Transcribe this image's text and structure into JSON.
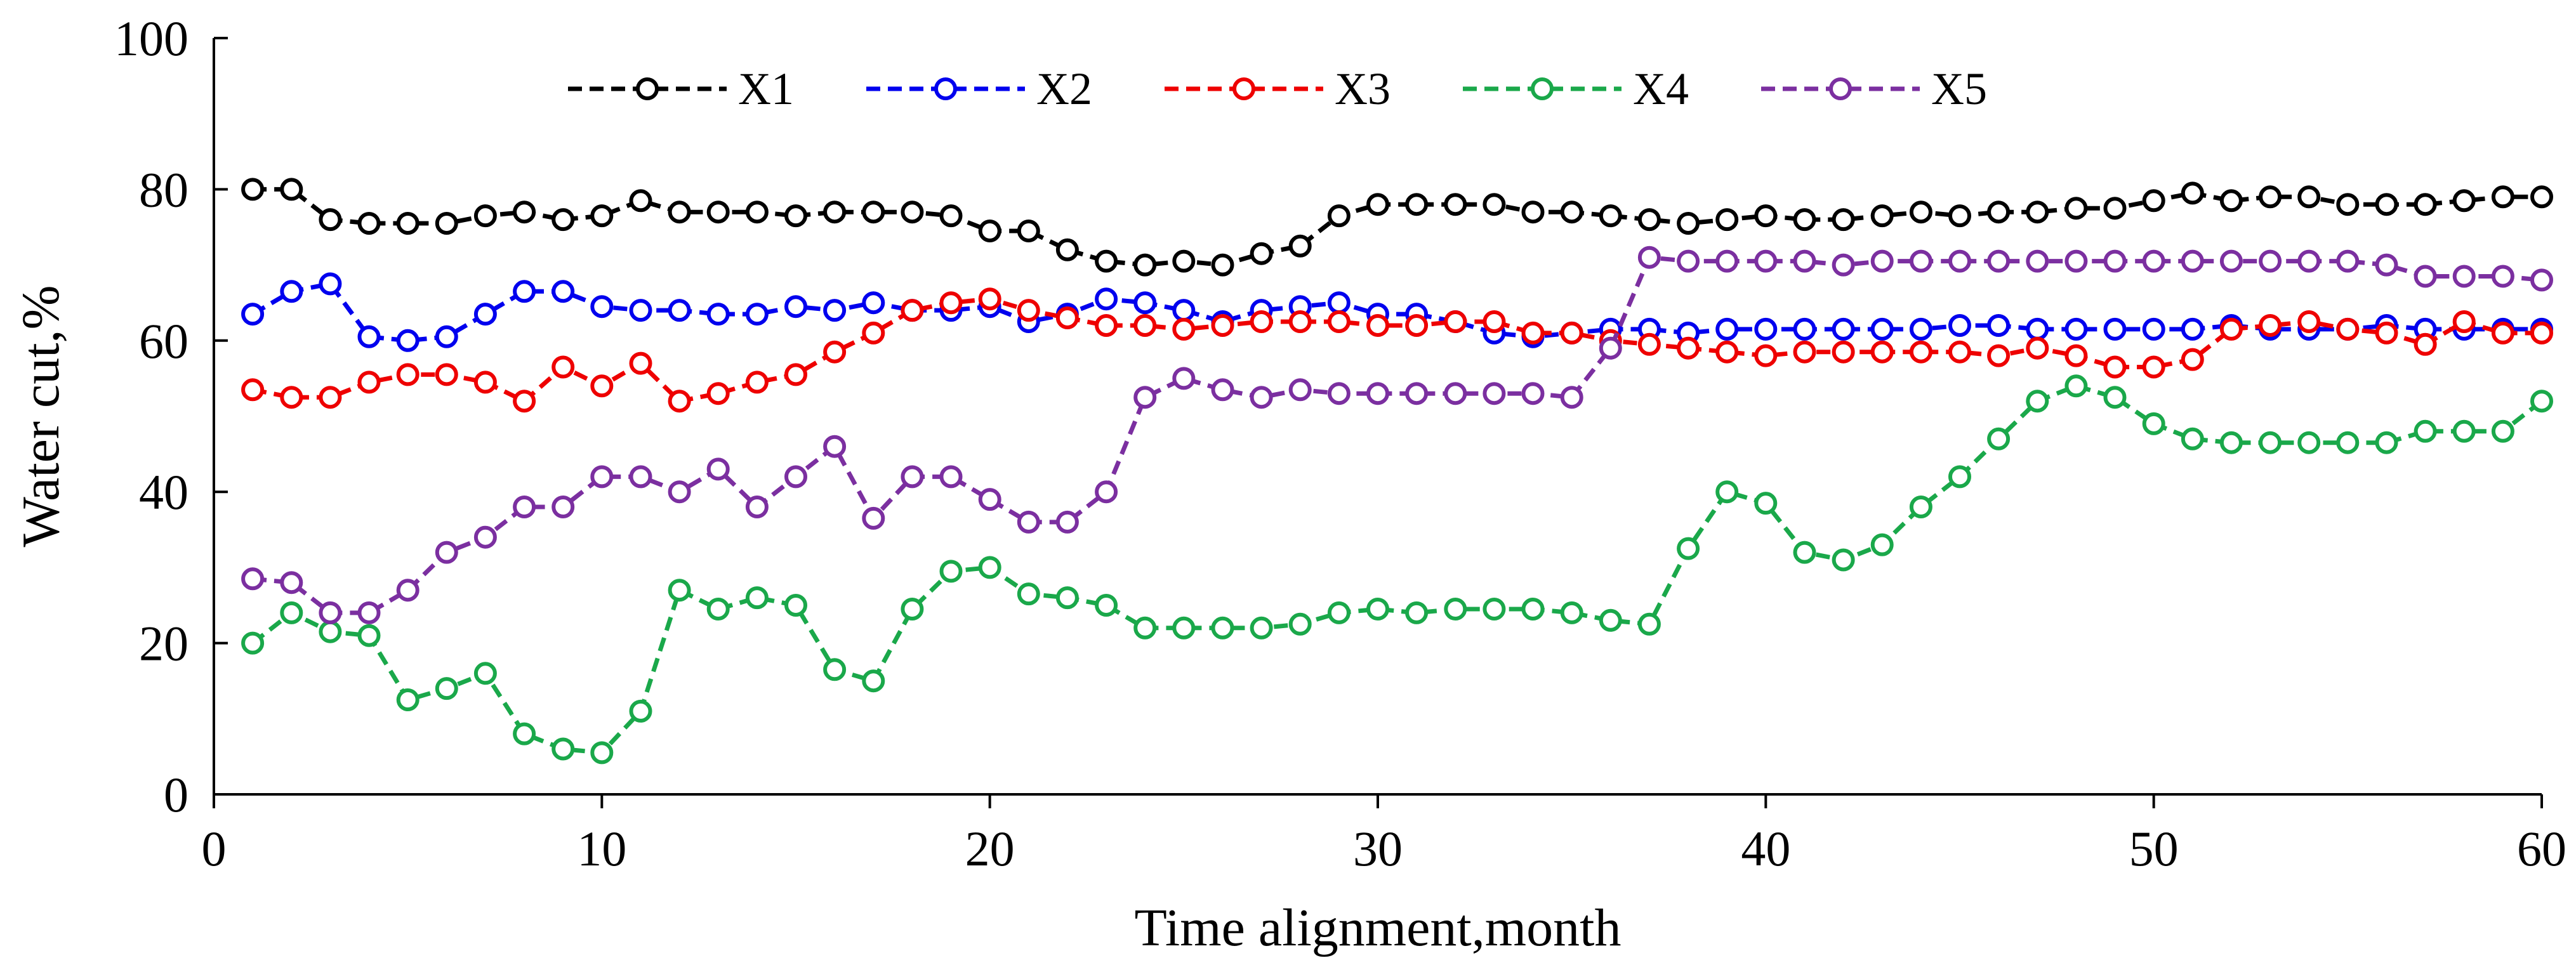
{
  "chart_data": {
    "type": "line",
    "title": "",
    "xlabel": "Time alignment,month",
    "ylabel": "Water cut,%",
    "xlim": [
      0,
      60
    ],
    "ylim": [
      0,
      100
    ],
    "xticks": [
      0,
      10,
      20,
      30,
      40,
      50,
      60
    ],
    "yticks": [
      0,
      20,
      40,
      60,
      80,
      100
    ],
    "grid": false,
    "legend_position": "top",
    "marker": "circle",
    "line_style": "dashed",
    "x": [
      1,
      2,
      3,
      4,
      5,
      6,
      7,
      8,
      9,
      10,
      11,
      12,
      13,
      14,
      15,
      16,
      17,
      18,
      19,
      20,
      21,
      22,
      23,
      24,
      25,
      26,
      27,
      28,
      29,
      30,
      31,
      32,
      33,
      34,
      35,
      36,
      37,
      38,
      39,
      40,
      41,
      42,
      43,
      44,
      45,
      46,
      47,
      48,
      49,
      50,
      51,
      52,
      53,
      54,
      55,
      56,
      57,
      58,
      59,
      60
    ],
    "series": [
      {
        "name": "X1",
        "color": "#000000",
        "values": [
          80,
          80,
          76,
          75.5,
          75.5,
          75.5,
          76.5,
          77,
          76,
          76.5,
          78.5,
          77,
          77,
          77,
          76.5,
          77,
          77,
          77,
          76.5,
          74.5,
          74.5,
          72,
          70.5,
          70,
          70.5,
          70,
          71.5,
          72.5,
          76.5,
          78,
          78,
          78,
          78,
          77,
          77,
          76.5,
          76,
          75.5,
          76,
          76.5,
          76,
          76,
          76.5,
          77,
          76.5,
          77,
          77,
          77.5,
          77.5,
          78.5,
          79.5,
          78.5,
          79,
          79,
          78,
          78,
          78,
          78.5,
          79,
          79
        ]
      },
      {
        "name": "X2",
        "color": "#0000ee",
        "values": [
          63.5,
          66.5,
          67.5,
          60.5,
          60,
          60.5,
          63.5,
          66.5,
          66.5,
          64.5,
          64,
          64,
          63.5,
          63.5,
          64.5,
          64,
          65,
          64,
          64,
          64.5,
          62.5,
          63.5,
          65.5,
          65,
          64,
          62.5,
          64,
          64.5,
          65,
          63.5,
          63.5,
          62.5,
          61,
          60.5,
          61,
          61.5,
          61.5,
          61,
          61.5,
          61.5,
          61.5,
          61.5,
          61.5,
          61.5,
          62,
          62,
          61.5,
          61.5,
          61.5,
          61.5,
          61.5,
          62,
          61.5,
          61.5,
          61.5,
          62,
          61.5,
          61.5,
          61.5,
          61.5
        ]
      },
      {
        "name": "X3",
        "color": "#ee0000",
        "values": [
          53.5,
          52.5,
          52.5,
          54.5,
          55.5,
          55.5,
          54.5,
          52,
          56.5,
          54,
          57,
          52,
          53,
          54.5,
          55.5,
          58.5,
          61,
          64,
          65,
          65.5,
          64,
          63,
          62,
          62,
          61.5,
          62,
          62.5,
          62.5,
          62.5,
          62,
          62,
          62.5,
          62.5,
          61,
          61,
          60,
          59.5,
          59,
          58.5,
          58,
          58.5,
          58.5,
          58.5,
          58.5,
          58.5,
          58,
          59,
          58,
          56.5,
          56.5,
          57.5,
          61.5,
          62,
          62.5,
          61.5,
          61,
          59.5,
          62.5,
          61,
          61
        ]
      },
      {
        "name": "X4",
        "color": "#1aa84a",
        "values": [
          20,
          24,
          21.5,
          21,
          12.5,
          14,
          16,
          8,
          6,
          5.5,
          11,
          27,
          24.5,
          26,
          25,
          16.5,
          15,
          24.5,
          29.5,
          30,
          26.5,
          26,
          25,
          22,
          22,
          22,
          22,
          22.5,
          24,
          24.5,
          24,
          24.5,
          24.5,
          24.5,
          24,
          23,
          22.5,
          32.5,
          40,
          38.5,
          32,
          31,
          33,
          38,
          42,
          47,
          52,
          54,
          52.5,
          49,
          47,
          46.5,
          46.5,
          46.5,
          46.5,
          46.5,
          48,
          48,
          48,
          52
        ]
      },
      {
        "name": "X5",
        "color": "#7b2fa0",
        "values": [
          28.5,
          28,
          24,
          24,
          27,
          32,
          34,
          38,
          38,
          42,
          42,
          40,
          43,
          38,
          42,
          46,
          36.5,
          42,
          42,
          39,
          36,
          36,
          40,
          52.5,
          55,
          53.5,
          52.5,
          53.5,
          53,
          53,
          53,
          53,
          53,
          53,
          52.5,
          59,
          71,
          70.5,
          70.5,
          70.5,
          70.5,
          70,
          70.5,
          70.5,
          70.5,
          70.5,
          70.5,
          70.5,
          70.5,
          70.5,
          70.5,
          70.5,
          70.5,
          70.5,
          70.5,
          70,
          68.5,
          68.5,
          68.5,
          68
        ]
      }
    ]
  }
}
